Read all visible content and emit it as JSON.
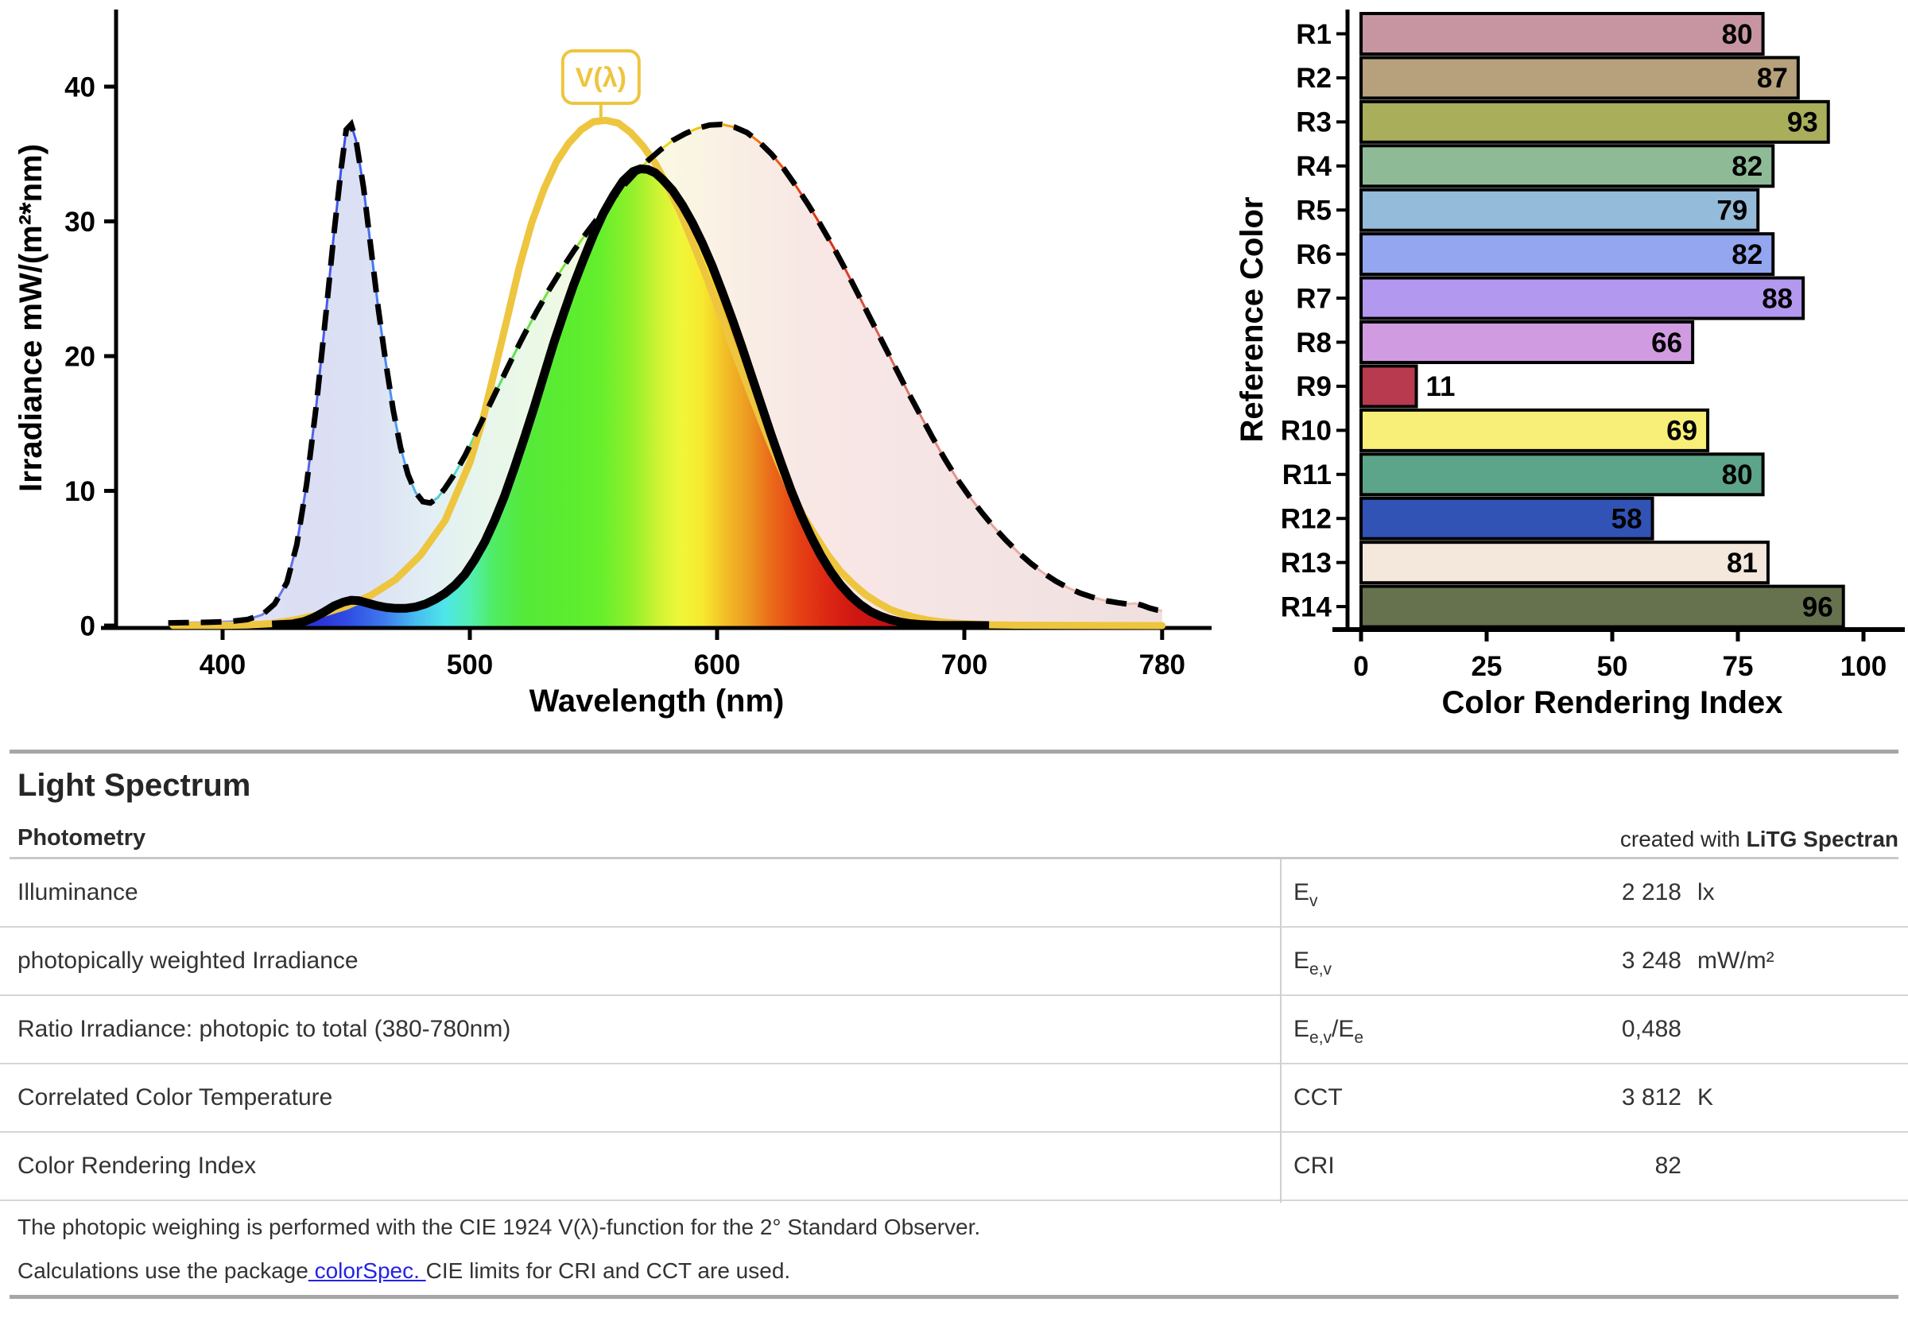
{
  "chart_data": [
    {
      "type": "area",
      "title": "",
      "xlabel": "Wavelength (nm)",
      "ylabel": "Irradiance  mW/(m²*nm)",
      "xlim": [
        380,
        780
      ],
      "ylim": [
        0,
        44
      ],
      "xticks": [
        400,
        500,
        600,
        700,
        780
      ],
      "yticks": [
        0,
        10,
        20,
        30,
        40
      ],
      "grid": false,
      "annotation": {
        "label": "V(λ)",
        "x_nm": 553,
        "color": "#EEC53F"
      },
      "series": [
        {
          "name": "total-spectral-irradiance",
          "style": "dashed-black",
          "points": [
            [
              378,
              0.2
            ],
            [
              385,
              0.22
            ],
            [
              395,
              0.25
            ],
            [
              403,
              0.3
            ],
            [
              410,
              0.45
            ],
            [
              416,
              0.8
            ],
            [
              421,
              1.6
            ],
            [
              426,
              3.2
            ],
            [
              430,
              6
            ],
            [
              434,
              10.5
            ],
            [
              438,
              16.5
            ],
            [
              442,
              23.5
            ],
            [
              445,
              29
            ],
            [
              448,
              34
            ],
            [
              450,
              36.8
            ],
            [
              452,
              37.2
            ],
            [
              454,
              36
            ],
            [
              457,
              32.5
            ],
            [
              460,
              28
            ],
            [
              463,
              23.5
            ],
            [
              466,
              19.5
            ],
            [
              469,
              16
            ],
            [
              472,
              13.2
            ],
            [
              475,
              11.2
            ],
            [
              478,
              9.9
            ],
            [
              481,
              9.2
            ],
            [
              484,
              9.1
            ],
            [
              487,
              9.5
            ],
            [
              490,
              10.2
            ],
            [
              494,
              11.3
            ],
            [
              498,
              12.6
            ],
            [
              502,
              14.1
            ],
            [
              507,
              16
            ],
            [
              512,
              17.9
            ],
            [
              517,
              19.8
            ],
            [
              522,
              21.6
            ],
            [
              527,
              23.3
            ],
            [
              532,
              24.9
            ],
            [
              537,
              26.4
            ],
            [
              542,
              27.8
            ],
            [
              547,
              29.1
            ],
            [
              552,
              30.3
            ],
            [
              557,
              31.5
            ],
            [
              562,
              32.6
            ],
            [
              567,
              33.6
            ],
            [
              572,
              34.5
            ],
            [
              577,
              35.3
            ],
            [
              582,
              36
            ],
            [
              587,
              36.5
            ],
            [
              592,
              36.9
            ],
            [
              597,
              37.15
            ],
            [
              602,
              37.2
            ],
            [
              607,
              37
            ],
            [
              612,
              36.6
            ],
            [
              617,
              35.9
            ],
            [
              622,
              35
            ],
            [
              627,
              33.9
            ],
            [
              632,
              32.6
            ],
            [
              637,
              31.2
            ],
            [
              642,
              29.7
            ],
            [
              647,
              28.1
            ],
            [
              652,
              26.4
            ],
            [
              657,
              24.6
            ],
            [
              662,
              22.8
            ],
            [
              667,
              21
            ],
            [
              672,
              19.2
            ],
            [
              677,
              17.4
            ],
            [
              682,
              15.7
            ],
            [
              687,
              14
            ],
            [
              692,
              12.4
            ],
            [
              697,
              10.9
            ],
            [
              702,
              9.6
            ],
            [
              707,
              8.4
            ],
            [
              712,
              7.3
            ],
            [
              717,
              6.3
            ],
            [
              722,
              5.4
            ],
            [
              727,
              4.6
            ],
            [
              732,
              3.9
            ],
            [
              737,
              3.3
            ],
            [
              742,
              2.8
            ],
            [
              747,
              2.4
            ],
            [
              752,
              2.1
            ],
            [
              757,
              1.85
            ],
            [
              762,
              1.7
            ],
            [
              766,
              1.6
            ],
            [
              769,
              1.65
            ],
            [
              772,
              1.5
            ],
            [
              775,
              1.3
            ],
            [
              778,
              1.15
            ],
            [
              780,
              1.1
            ]
          ]
        },
        {
          "name": "photopically-weighted-irradiance",
          "style": "solid-black",
          "points": [
            [
              420,
              0.05
            ],
            [
              428,
              0.12
            ],
            [
              433,
              0.3
            ],
            [
              437,
              0.6
            ],
            [
              441,
              1.0
            ],
            [
              445,
              1.45
            ],
            [
              449,
              1.75
            ],
            [
              452,
              1.88
            ],
            [
              455,
              1.85
            ],
            [
              458,
              1.7
            ],
            [
              462,
              1.5
            ],
            [
              466,
              1.35
            ],
            [
              470,
              1.28
            ],
            [
              474,
              1.28
            ],
            [
              478,
              1.38
            ],
            [
              482,
              1.6
            ],
            [
              486,
              1.95
            ],
            [
              490,
              2.4
            ],
            [
              494,
              3.0
            ],
            [
              498,
              3.8
            ],
            [
              502,
              4.9
            ],
            [
              506,
              6.2
            ],
            [
              510,
              7.8
            ],
            [
              514,
              9.6
            ],
            [
              518,
              11.7
            ],
            [
              522,
              13.9
            ],
            [
              526,
              16.2
            ],
            [
              530,
              18.6
            ],
            [
              534,
              21
            ],
            [
              538,
              23.2
            ],
            [
              542,
              25.3
            ],
            [
              546,
              27.2
            ],
            [
              550,
              29
            ],
            [
              554,
              30.6
            ],
            [
              558,
              31.9
            ],
            [
              562,
              33
            ],
            [
              566,
              33.7
            ],
            [
              569,
              33.9
            ],
            [
              572,
              33.85
            ],
            [
              575,
              33.6
            ],
            [
              578,
              33.1
            ],
            [
              582,
              32.3
            ],
            [
              586,
              31.2
            ],
            [
              590,
              29.9
            ],
            [
              594,
              28.4
            ],
            [
              598,
              26.7
            ],
            [
              602,
              24.8
            ],
            [
              606,
              22.8
            ],
            [
              610,
              20.7
            ],
            [
              614,
              18.5
            ],
            [
              618,
              16.3
            ],
            [
              622,
              14.1
            ],
            [
              626,
              12
            ],
            [
              630,
              10
            ],
            [
              634,
              8.2
            ],
            [
              638,
              6.6
            ],
            [
              642,
              5.2
            ],
            [
              646,
              4
            ],
            [
              650,
              3
            ],
            [
              654,
              2.2
            ],
            [
              658,
              1.55
            ],
            [
              662,
              1.05
            ],
            [
              666,
              0.7
            ],
            [
              670,
              0.45
            ],
            [
              674,
              0.27
            ],
            [
              678,
              0.15
            ],
            [
              683,
              0.07
            ],
            [
              690,
              0.02
            ],
            [
              700,
              0.01
            ],
            [
              710,
              0
            ]
          ]
        },
        {
          "name": "v-lambda-curve",
          "style": "solid-yellow",
          "color": "#EEC53F",
          "points": [
            [
              380,
              0.01
            ],
            [
              400,
              0.02
            ],
            [
              410,
              0.05
            ],
            [
              420,
              0.15
            ],
            [
              430,
              0.44
            ],
            [
              440,
              0.86
            ],
            [
              450,
              1.43
            ],
            [
              460,
              2.25
            ],
            [
              470,
              3.42
            ],
            [
              480,
              5.22
            ],
            [
              490,
              7.8
            ],
            [
              500,
              12.1
            ],
            [
              505,
              15.1
            ],
            [
              510,
              18.9
            ],
            [
              515,
              22.7
            ],
            [
              520,
              26.6
            ],
            [
              525,
              29.9
            ],
            [
              530,
              32.4
            ],
            [
              535,
              34.4
            ],
            [
              540,
              35.8
            ],
            [
              545,
              36.8
            ],
            [
              550,
              37.4
            ],
            [
              555,
              37.5
            ],
            [
              560,
              37.3
            ],
            [
              565,
              36.6
            ],
            [
              570,
              35.6
            ],
            [
              575,
              34.3
            ],
            [
              580,
              32.6
            ],
            [
              585,
              30.7
            ],
            [
              590,
              28.5
            ],
            [
              595,
              26.2
            ],
            [
              600,
              23.8
            ],
            [
              605,
              21.3
            ],
            [
              610,
              18.9
            ],
            [
              615,
              16.5
            ],
            [
              620,
              14.2
            ],
            [
              625,
              12
            ],
            [
              630,
              9.9
            ],
            [
              635,
              8.1
            ],
            [
              640,
              6.6
            ],
            [
              645,
              5.2
            ],
            [
              650,
              4
            ],
            [
              655,
              3.1
            ],
            [
              660,
              2.3
            ],
            [
              665,
              1.7
            ],
            [
              670,
              1.2
            ],
            [
              675,
              0.87
            ],
            [
              680,
              0.61
            ],
            [
              685,
              0.42
            ],
            [
              690,
              0.29
            ],
            [
              695,
              0.2
            ],
            [
              700,
              0.14
            ],
            [
              710,
              0.06
            ],
            [
              720,
              0.03
            ],
            [
              740,
              0.01
            ],
            [
              760,
              0.005
            ],
            [
              780,
              0
            ]
          ]
        }
      ]
    },
    {
      "type": "bar",
      "orientation": "horizontal",
      "categories": [
        "R1",
        "R2",
        "R3",
        "R4",
        "R5",
        "R6",
        "R7",
        "R8",
        "R9",
        "R10",
        "R11",
        "R12",
        "R13",
        "R14"
      ],
      "values": [
        80,
        87,
        93,
        82,
        79,
        82,
        88,
        66,
        11,
        69,
        80,
        58,
        81,
        96
      ],
      "colors": [
        "#C795A1",
        "#B7A17C",
        "#A8AE5A",
        "#8EBB96",
        "#94BBD9",
        "#93A6EF",
        "#B298EE",
        "#D19BE2",
        "#B73A4F",
        "#F7EF78",
        "#5CA58A",
        "#3153B6",
        "#F4E7DB",
        "#66714E"
      ],
      "xlabel": "Color Rendering Index",
      "ylabel": "Reference Color",
      "xticks": [
        0,
        25,
        50,
        75,
        100
      ],
      "xlim": [
        0,
        100
      ],
      "grid": false
    }
  ],
  "report": {
    "title": "Light Spectrum",
    "section": "Photometry",
    "credit_prefix": "created with ",
    "credit_app": "LiTG Spectran",
    "rows": [
      {
        "label": "Illuminance",
        "symbol": [
          [
            "E",
            "v"
          ]
        ],
        "value": "2 218",
        "unit": "lx"
      },
      {
        "label": "photopically weighted Irradiance",
        "symbol": [
          [
            "E",
            "e,v"
          ]
        ],
        "value": "3 248",
        "unit": "mW/m²"
      },
      {
        "label": "Ratio Irradiance: photopic to total (380-780nm)",
        "symbol": [
          [
            "E",
            "e,v"
          ],
          [
            "/",
            ""
          ],
          [
            "E",
            "e"
          ]
        ],
        "value": "0,488",
        "unit": ""
      },
      {
        "label": "Correlated Color Temperature",
        "symbol": [
          [
            "CCT",
            ""
          ]
        ],
        "value": "3 812",
        "unit": "K"
      },
      {
        "label": "Color Rendering Index",
        "symbol": [
          [
            "CRI",
            ""
          ]
        ],
        "value": "82",
        "unit": ""
      }
    ],
    "footnote1": "The photopic weighing is performed with the CIE 1924 V(λ)-function for the 2° Standard Observer.",
    "footnote2_pre": "Calculations use the package",
    "footnote2_link": " colorSpec. ",
    "footnote2_post": "CIE limits for CRI and CCT are used."
  }
}
